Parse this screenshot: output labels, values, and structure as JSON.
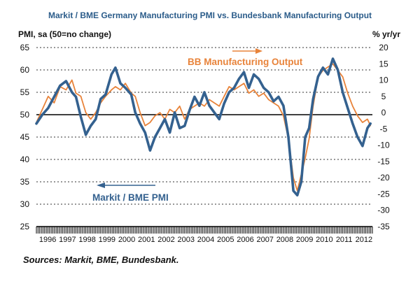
{
  "colors": {
    "pmi": "#34618f",
    "output": "#e8833a",
    "title": "#2b5c8a"
  },
  "chart_data": {
    "type": "line",
    "title": "Markit / BME Germany Manufacturing PMI vs. Bundesbank Manufacturing Output",
    "ylabel_left": "PMI, sa (50=no change)",
    "ylabel_right": "% yr/yr",
    "ylim_left": [
      25,
      65
    ],
    "ylim_right": [
      -35,
      20
    ],
    "yticks_left": [
      "65",
      "60",
      "55",
      "50",
      "45",
      "40",
      "35",
      "30",
      "25"
    ],
    "yticks_right": [
      "20",
      "15",
      "10",
      "5",
      "0",
      "-5",
      "-10",
      "-15",
      "-20",
      "-25",
      "-30",
      "-35"
    ],
    "xticks": [
      "1996",
      "1997",
      "1998",
      "1999",
      "2000",
      "2001",
      "2002",
      "2003",
      "2004",
      "2005",
      "2006",
      "2007",
      "2008",
      "2009",
      "2010",
      "2011",
      "2012"
    ],
    "xlim": [
      1996.0,
      2013.0
    ],
    "grid": "horizontal dashed",
    "annotations": [
      {
        "text": "BB Manufacturing Output",
        "arrow": "right",
        "series": "output"
      },
      {
        "text": "Markit / BME PMI",
        "arrow": "left",
        "series": "pmi"
      }
    ],
    "series": [
      {
        "name": "Markit / BME PMI",
        "axis": "left",
        "x": [
          1996.0,
          1996.3,
          1996.6,
          1996.9,
          1997.2,
          1997.5,
          1997.8,
          1998.0,
          1998.25,
          1998.5,
          1998.75,
          1999.0,
          1999.25,
          1999.5,
          1999.8,
          2000.0,
          2000.25,
          2000.5,
          2000.8,
          2001.0,
          2001.25,
          2001.5,
          2001.75,
          2002.0,
          2002.25,
          2002.5,
          2002.75,
          2003.0,
          2003.25,
          2003.5,
          2003.75,
          2004.0,
          2004.25,
          2004.5,
          2004.75,
          2005.0,
          2005.25,
          2005.5,
          2005.75,
          2006.0,
          2006.25,
          2006.5,
          2006.75,
          2007.0,
          2007.25,
          2007.5,
          2007.75,
          2008.0,
          2008.25,
          2008.5,
          2008.75,
          2009.0,
          2009.2,
          2009.4,
          2009.6,
          2009.8,
          2010.0,
          2010.25,
          2010.5,
          2010.75,
          2011.0,
          2011.25,
          2011.5,
          2011.75,
          2012.0,
          2012.25,
          2012.5,
          2012.75,
          2012.9
        ],
        "values": [
          48,
          50,
          51.5,
          54,
          56.5,
          57.5,
          55,
          54,
          49.5,
          45.5,
          47.5,
          49,
          53.5,
          54.5,
          59,
          60.5,
          57,
          56,
          54.5,
          50.5,
          48,
          46,
          42,
          45,
          47,
          49,
          46,
          50.5,
          47,
          47.5,
          51,
          54,
          52,
          55,
          52,
          50.5,
          49,
          52.5,
          55,
          56,
          58,
          59.5,
          56,
          59,
          58,
          56,
          55,
          53,
          54,
          52,
          45,
          33,
          32,
          35,
          45,
          47,
          53.5,
          58.5,
          60.5,
          59,
          62.5,
          60,
          55,
          51.5,
          48,
          45,
          43,
          47,
          48
        ]
      },
      {
        "name": "BB Manufacturing Output",
        "axis": "right",
        "x": [
          1996.0,
          1996.3,
          1996.6,
          1996.9,
          1997.2,
          1997.5,
          1997.8,
          1998.0,
          1998.25,
          1998.5,
          1998.75,
          1999.0,
          1999.25,
          1999.5,
          1999.8,
          2000.0,
          2000.25,
          2000.5,
          2000.8,
          2001.0,
          2001.25,
          2001.5,
          2001.75,
          2002.0,
          2002.25,
          2002.5,
          2002.75,
          2003.0,
          2003.25,
          2003.5,
          2003.75,
          2004.0,
          2004.25,
          2004.5,
          2004.75,
          2005.0,
          2005.25,
          2005.5,
          2005.75,
          2006.0,
          2006.25,
          2006.5,
          2006.75,
          2007.0,
          2007.25,
          2007.5,
          2007.75,
          2008.0,
          2008.25,
          2008.5,
          2008.75,
          2009.0,
          2009.2,
          2009.4,
          2009.6,
          2009.8,
          2010.0,
          2010.25,
          2010.5,
          2010.75,
          2011.0,
          2011.25,
          2011.5,
          2011.75,
          2012.0,
          2012.25,
          2012.5,
          2012.75,
          2012.9
        ],
        "values": [
          -3,
          1,
          5,
          3,
          8,
          7,
          10,
          6,
          5,
          0,
          -2,
          0,
          3,
          5,
          7,
          8,
          7,
          9,
          6,
          5,
          0,
          -4,
          -3,
          -1,
          0,
          -2,
          1,
          0,
          2,
          -2,
          1,
          2,
          3,
          2,
          4,
          3,
          2,
          5,
          8,
          7,
          8,
          9,
          6,
          7,
          5,
          6,
          4,
          3,
          2,
          -1,
          -8,
          -20,
          -24,
          -19,
          -14,
          -8,
          2,
          11,
          13,
          14,
          15,
          13,
          11,
          6,
          2,
          -1,
          -3,
          -2,
          -4
        ]
      }
    ]
  },
  "source": "Sources: Markit, BME, Bundesbank."
}
